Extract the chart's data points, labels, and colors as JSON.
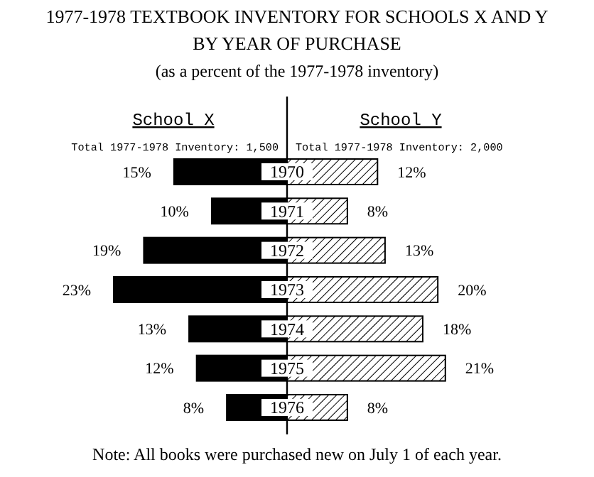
{
  "chart_data": [
    {
      "type": "bar",
      "orientation": "horizontal",
      "title": "1977-1978 TEXTBOOK INVENTORY FOR SCHOOLS X AND Y BY YEAR OF PURCHASE",
      "subtitle": "(as a percent of the 1977-1978 inventory)",
      "categories": [
        "1970",
        "1971",
        "1972",
        "1973",
        "1974",
        "1975",
        "1976"
      ],
      "series": [
        {
          "name": "School X",
          "color": "#000000",
          "values": [
            15,
            10,
            19,
            23,
            13,
            12,
            8
          ],
          "value_labels": [
            "15%",
            "10%",
            "19%",
            "23%",
            "13%",
            "12%",
            "8%"
          ]
        }
      ],
      "annotations": [
        "Total 1977-1978 Inventory: 1,500",
        "Note: All books were purchased new on July 1 of each year."
      ]
    },
    {
      "type": "bar",
      "orientation": "horizontal",
      "categories": [
        null,
        null,
        null,
        null,
        null,
        null,
        null
      ],
      "series": [
        {
          "name": "School Y",
          "color": "#000000",
          "values": [
            12,
            8,
            13,
            20,
            18,
            21,
            8
          ],
          "value_labels": [
            "12%",
            "8%",
            "13%",
            "20%",
            "18%",
            "21%",
            "8%"
          ]
        }
      ],
      "annotations": [
        "Total 1977-1978 Inventory: 2,000"
      ]
    }
  ]
}
